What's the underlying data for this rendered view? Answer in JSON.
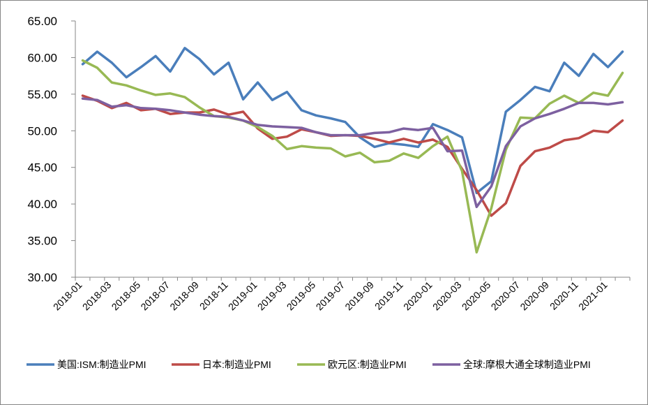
{
  "chart_data": {
    "type": "line",
    "title": "",
    "xlabel": "",
    "ylabel": "",
    "ylim": [
      30,
      65
    ],
    "yticks": [
      "30.00",
      "35.00",
      "40.00",
      "45.00",
      "50.00",
      "55.00",
      "60.00",
      "65.00"
    ],
    "grid": false,
    "legend_position": "bottom",
    "x": [
      "2018-01",
      "2018-02",
      "2018-03",
      "2018-04",
      "2018-05",
      "2018-06",
      "2018-07",
      "2018-08",
      "2018-09",
      "2018-10",
      "2018-11",
      "2018-12",
      "2019-01",
      "2019-02",
      "2019-03",
      "2019-04",
      "2019-05",
      "2019-06",
      "2019-07",
      "2019-08",
      "2019-09",
      "2019-10",
      "2019-11",
      "2019-12",
      "2020-01",
      "2020-02",
      "2020-03",
      "2020-04",
      "2020-05",
      "2020-06",
      "2020-07",
      "2020-08",
      "2020-09",
      "2020-10",
      "2020-11",
      "2020-12",
      "2021-01",
      "2021-02"
    ],
    "xtick_labels": [
      "2018-01",
      "2018-03",
      "2018-05",
      "2018-07",
      "2018-09",
      "2018-11",
      "2019-01",
      "2019-03",
      "2019-05",
      "2019-07",
      "2019-09",
      "2019-11",
      "2020-01",
      "2020-03",
      "2020-05",
      "2020-07",
      "2020-09",
      "2020-11",
      "2021-01"
    ],
    "series": [
      {
        "name": "美国:ISM:制造业PMI",
        "color": "#4a7ebb",
        "values": [
          59.1,
          60.8,
          59.3,
          57.3,
          58.7,
          60.2,
          58.1,
          61.3,
          59.8,
          57.7,
          59.3,
          54.3,
          56.6,
          54.2,
          55.3,
          52.8,
          52.1,
          51.7,
          51.2,
          49.1,
          47.8,
          48.3,
          48.1,
          47.8,
          50.9,
          50.1,
          49.1,
          41.5,
          43.1,
          52.6,
          54.2,
          56.0,
          55.4,
          59.3,
          57.5,
          60.5,
          58.7,
          60.8
        ]
      },
      {
        "name": "日本:制造业PMI",
        "color": "#be4b48",
        "values": [
          54.8,
          54.1,
          53.1,
          53.8,
          52.8,
          53.0,
          52.3,
          52.5,
          52.5,
          52.9,
          52.2,
          52.6,
          50.3,
          48.9,
          49.2,
          50.2,
          49.8,
          49.3,
          49.4,
          49.3,
          48.9,
          48.4,
          48.9,
          48.4,
          48.8,
          47.8,
          44.8,
          41.9,
          38.4,
          40.1,
          45.2,
          47.2,
          47.7,
          48.7,
          49.0,
          50.0,
          49.8,
          51.4
        ]
      },
      {
        "name": "欧元区:制造业PMI",
        "color": "#98b954",
        "values": [
          59.6,
          58.6,
          56.6,
          56.2,
          55.5,
          54.9,
          55.1,
          54.6,
          53.2,
          52.0,
          51.8,
          51.4,
          50.5,
          49.3,
          47.5,
          47.9,
          47.7,
          47.6,
          46.5,
          47.0,
          45.7,
          45.9,
          46.9,
          46.3,
          47.9,
          49.2,
          44.5,
          33.4,
          39.4,
          47.4,
          51.8,
          51.7,
          53.7,
          54.8,
          53.8,
          55.2,
          54.8,
          57.9
        ]
      },
      {
        "name": "全球:摩根大通全球制造业PMI",
        "color": "#7d60a0",
        "values": [
          54.4,
          54.2,
          53.3,
          53.5,
          53.1,
          53.0,
          52.8,
          52.5,
          52.2,
          52.0,
          51.9,
          51.4,
          50.8,
          50.6,
          50.5,
          50.4,
          49.8,
          49.4,
          49.4,
          49.4,
          49.7,
          49.8,
          50.3,
          50.1,
          50.4,
          47.2,
          47.3,
          39.6,
          42.4,
          47.9,
          50.6,
          51.7,
          52.3,
          53.0,
          53.8,
          53.8,
          53.6,
          53.9
        ]
      }
    ]
  }
}
